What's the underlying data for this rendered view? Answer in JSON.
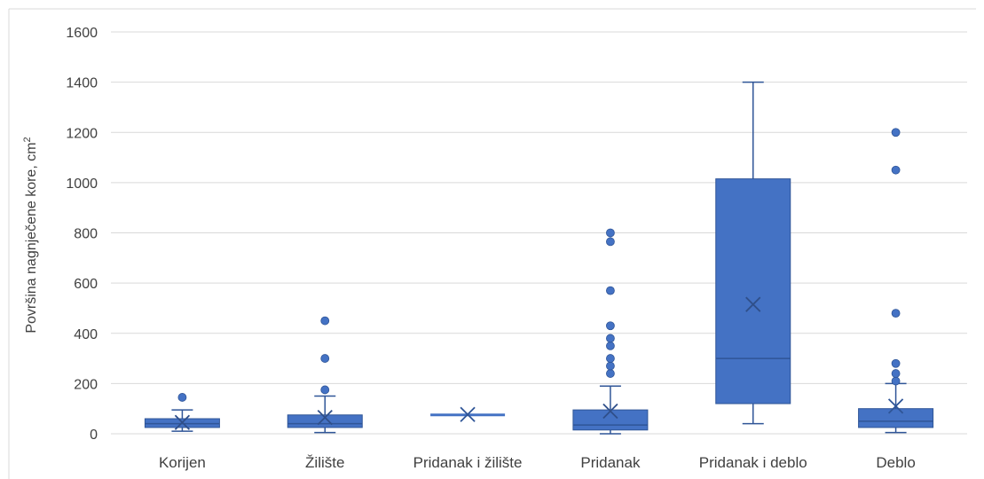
{
  "chart_data": {
    "type": "box",
    "ylabel": "Površina nagnječene kore, cm",
    "ylabel_sup": "2",
    "ylim": [
      0,
      1600
    ],
    "yticks": [
      0,
      200,
      400,
      600,
      800,
      1000,
      1200,
      1400,
      1600
    ],
    "grid": true,
    "legend": "none",
    "colors": {
      "box": "#4472c4",
      "stroke": "#2f5597",
      "grid": "#d9d9d9"
    },
    "categories": [
      "Korijen",
      "Žilište",
      "Pridanak i žilište",
      "Pridanak",
      "Pridanak i deblo",
      "Deblo"
    ],
    "boxes": [
      {
        "category": "Korijen",
        "min": 10,
        "q1": 25,
        "median": 40,
        "q3": 60,
        "max": 95,
        "mean": 45,
        "outliers": [
          145
        ]
      },
      {
        "category": "Žilište",
        "min": 5,
        "q1": 25,
        "median": 40,
        "q3": 75,
        "max": 150,
        "mean": 65,
        "outliers": [
          175,
          300,
          450
        ]
      },
      {
        "category": "Pridanak i žilište",
        "min": 75,
        "q1": 75,
        "median": 75,
        "q3": 75,
        "max": 75,
        "mean": 77,
        "outliers": []
      },
      {
        "category": "Pridanak",
        "min": 0,
        "q1": 15,
        "median": 35,
        "q3": 95,
        "max": 190,
        "mean": 90,
        "outliers": [
          240,
          270,
          300,
          350,
          380,
          430,
          570,
          765,
          800
        ]
      },
      {
        "category": "Pridanak i deblo",
        "min": 40,
        "q1": 120,
        "median": 300,
        "q3": 1015,
        "max": 1400,
        "mean": 515,
        "outliers": []
      },
      {
        "category": "Deblo",
        "min": 5,
        "q1": 25,
        "median": 50,
        "q3": 100,
        "max": 200,
        "mean": 110,
        "outliers": [
          210,
          240,
          280,
          480,
          1050,
          1200
        ]
      }
    ]
  }
}
